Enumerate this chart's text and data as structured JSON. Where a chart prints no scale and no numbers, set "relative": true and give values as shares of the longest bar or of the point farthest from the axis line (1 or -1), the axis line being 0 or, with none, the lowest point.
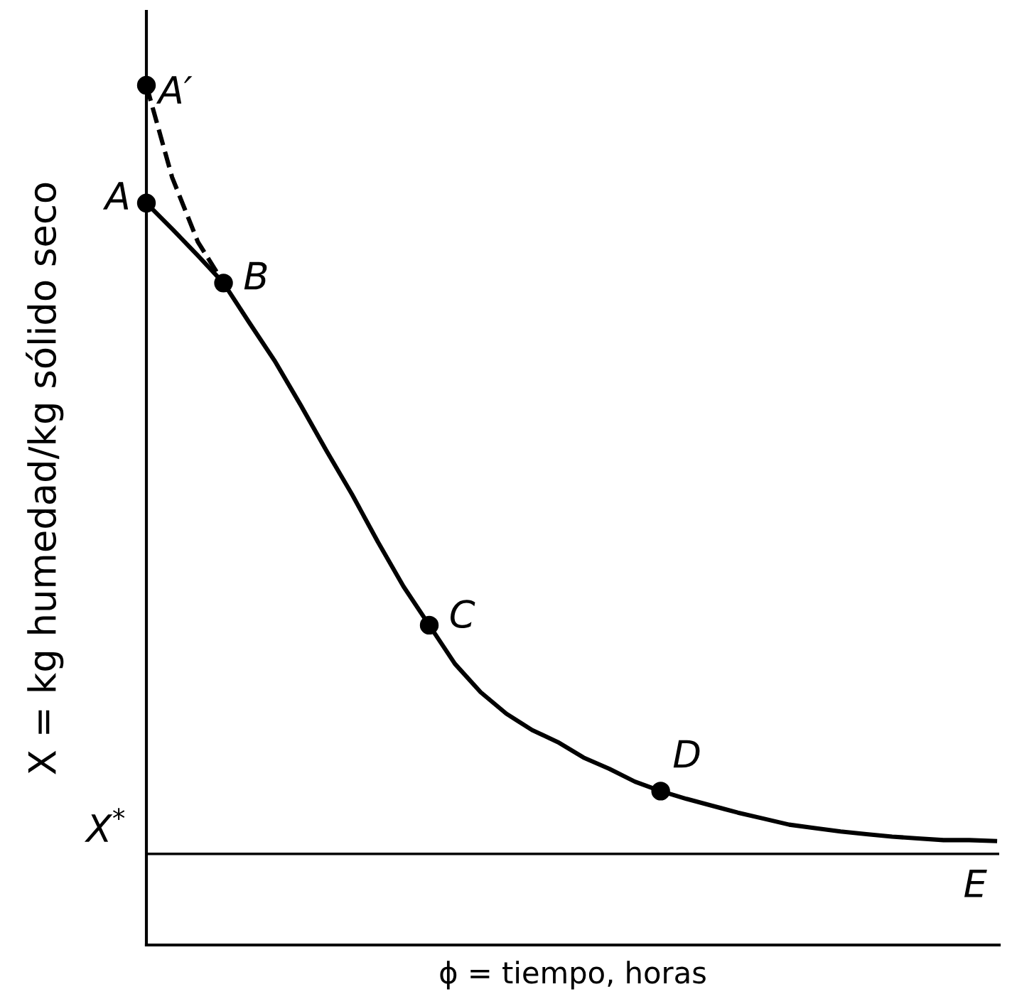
{
  "chart_data": {
    "type": "line",
    "relative": true,
    "xlabel": "ϕ = tiempo, horas",
    "ylabel": "X = kg humedad/kg sólido seco",
    "categories": [
      null,
      null,
      null,
      null,
      null,
      null,
      null,
      null,
      null,
      null,
      null,
      null,
      null,
      null,
      null,
      null,
      null,
      null,
      null,
      null,
      null,
      null,
      null,
      null,
      null,
      null,
      null,
      null,
      null,
      null,
      null,
      null,
      null,
      null
    ],
    "series": [
      {
        "name": "E",
        "color": "#000000",
        "line_style": "solid",
        "values": [
          0.863,
          0.833,
          0.802,
          0.77,
          0.724,
          0.679,
          0.628,
          0.575,
          0.524,
          0.469,
          0.417,
          0.372,
          0.327,
          0.294,
          0.269,
          0.25,
          0.236,
          0.218,
          0.205,
          0.19,
          0.179,
          0.17,
          0.162,
          0.154,
          0.147,
          0.14,
          0.136,
          0.132,
          0.129,
          0.126,
          0.124,
          0.122,
          0.122,
          0.121
        ]
      },
      {
        "type": "line",
        "color": "#000000",
        "line_style": "dashed",
        "values": [
          1,
          0.893,
          0.818,
          0.77,
          null,
          null,
          null,
          null,
          null,
          null,
          null,
          null,
          null,
          null,
          null,
          null,
          null,
          null,
          null,
          null,
          null,
          null,
          null,
          null,
          null,
          null,
          null,
          null,
          null,
          null,
          null,
          null,
          null,
          null
        ]
      },
      {
        "type": "line",
        "name": "A′",
        "color": "#000000",
        "marker": "circle",
        "values": [
          1,
          null,
          null,
          null,
          null,
          null,
          null,
          null,
          null,
          null,
          null,
          null,
          null,
          null,
          null,
          null,
          null,
          null,
          null,
          null,
          null,
          null,
          null,
          null,
          null,
          null,
          null,
          null,
          null,
          null,
          null,
          null,
          null,
          null
        ]
      },
      {
        "type": "line",
        "name": "A",
        "color": "#000000",
        "marker": "circle",
        "values": [
          0.863,
          null,
          null,
          null,
          null,
          null,
          null,
          null,
          null,
          null,
          null,
          null,
          null,
          null,
          null,
          null,
          null,
          null,
          null,
          null,
          null,
          null,
          null,
          null,
          null,
          null,
          null,
          null,
          null,
          null,
          null,
          null,
          null,
          null
        ]
      },
      {
        "type": "line",
        "name": "B",
        "color": "#000000",
        "marker": "circle",
        "values": [
          null,
          null,
          null,
          0.77,
          null,
          null,
          null,
          null,
          null,
          null,
          null,
          null,
          null,
          null,
          null,
          null,
          null,
          null,
          null,
          null,
          null,
          null,
          null,
          null,
          null,
          null,
          null,
          null,
          null,
          null,
          null,
          null,
          null,
          null
        ]
      },
      {
        "type": "line",
        "name": "C",
        "color": "#000000",
        "marker": "circle",
        "values": [
          null,
          null,
          null,
          null,
          null,
          null,
          null,
          null,
          null,
          null,
          null,
          0.372,
          null,
          null,
          null,
          null,
          null,
          null,
          null,
          null,
          null,
          null,
          null,
          null,
          null,
          null,
          null,
          null,
          null,
          null,
          null,
          null,
          null,
          null
        ]
      },
      {
        "type": "line",
        "name": "D",
        "color": "#000000",
        "marker": "circle",
        "values": [
          null,
          null,
          null,
          null,
          null,
          null,
          null,
          null,
          null,
          null,
          null,
          null,
          null,
          null,
          null,
          null,
          null,
          null,
          null,
          null,
          0.179,
          null,
          null,
          null,
          null,
          null,
          null,
          null,
          null,
          null,
          null,
          null,
          null,
          null
        ]
      }
    ],
    "ref_lines": [
      {
        "axis": "y",
        "value": 0.106,
        "label": "X$^{*}$",
        "color": "#000000",
        "line_style": "solid"
      }
    ]
  }
}
